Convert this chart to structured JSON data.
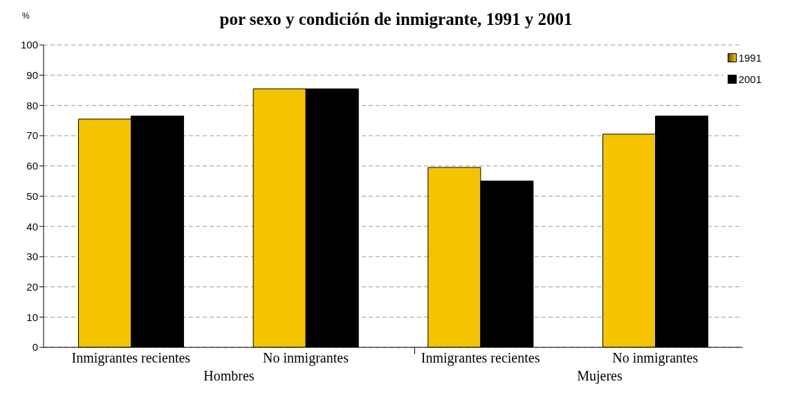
{
  "chart_data": {
    "type": "bar",
    "title": "por sexo y condición de inmigrante, 1991 y 2001",
    "ylabel": "%",
    "categories": [
      "Inmigrantes recientes",
      "No inmigrantes",
      "Inmigrantes recientes",
      "No inmigrantes"
    ],
    "annotations": [
      "Hombres",
      "Mujeres"
    ],
    "series": [
      {
        "name": "1991",
        "color": "#f5c400",
        "values": [
          75.5,
          85.5,
          59.5,
          70.5
        ]
      },
      {
        "name": "2001",
        "color": "#000000",
        "values": [
          76.5,
          85.5,
          55,
          76.5
        ]
      }
    ],
    "ylim": [
      0,
      100
    ],
    "yticks": [
      0,
      10,
      20,
      30,
      40,
      50,
      60,
      70,
      80,
      90,
      100
    ],
    "grid": "y",
    "legend": "top right"
  }
}
